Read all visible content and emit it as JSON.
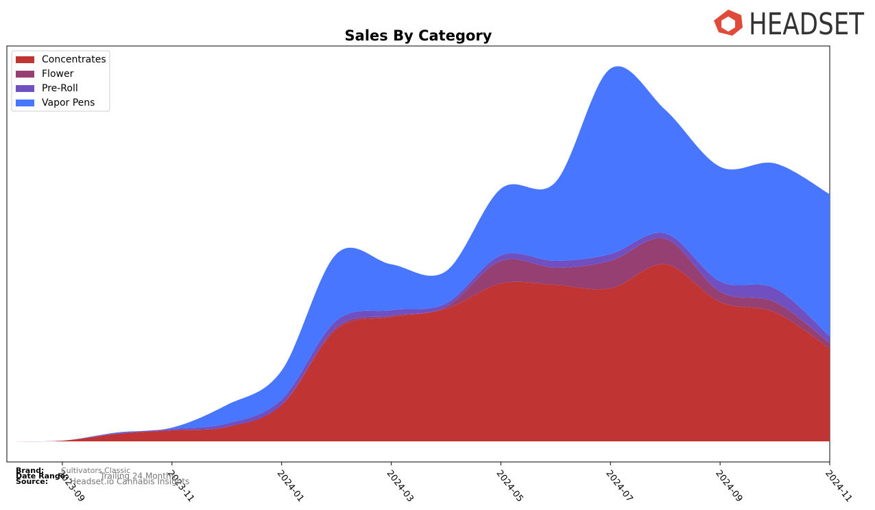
{
  "chart_data": {
    "type": "stacked-area",
    "title": "Sales By Category",
    "categories": [
      null,
      "2023-09",
      null,
      "2023-11",
      null,
      "2024-01",
      null,
      "2024-03",
      null,
      "2024-05",
      null,
      "2024-07",
      null,
      "2024-09",
      null,
      "2024-11"
    ],
    "series": [
      {
        "name": "Concentrates",
        "color": "#c13434",
        "values": [
          0,
          1,
          11,
          16,
          21,
          53,
          163,
          181,
          193,
          230,
          228,
          223,
          258,
          203,
          188,
          135
        ]
      },
      {
        "name": "Flower",
        "color": "#953f73",
        "values": [
          0,
          0,
          0,
          0,
          0,
          0,
          3,
          2,
          3,
          33,
          25,
          40,
          37,
          15,
          15,
          8
        ]
      },
      {
        "name": "Pre-Roll",
        "color": "#7050c0",
        "values": [
          0,
          0,
          1,
          2,
          5,
          8,
          10,
          8,
          5,
          8,
          10,
          10,
          8,
          15,
          20,
          10
        ]
      },
      {
        "name": "Vapor Pens",
        "color": "#4876ff",
        "values": [
          0,
          0,
          1,
          2,
          27,
          42,
          97,
          67,
          47,
          97,
          115,
          270,
          180,
          167,
          182,
          207
        ]
      }
    ],
    "ylim": [
      -30,
      576
    ],
    "legend": "upper-left",
    "footer": {
      "brand_label": "Brand:",
      "brand": "Cultivators Classic",
      "date_label": "Date Range:",
      "date": "Trailing 24 Months",
      "source_label": "Source:",
      "source": "Headset.io Cannabis Insights"
    },
    "logo": "HEADSET"
  }
}
